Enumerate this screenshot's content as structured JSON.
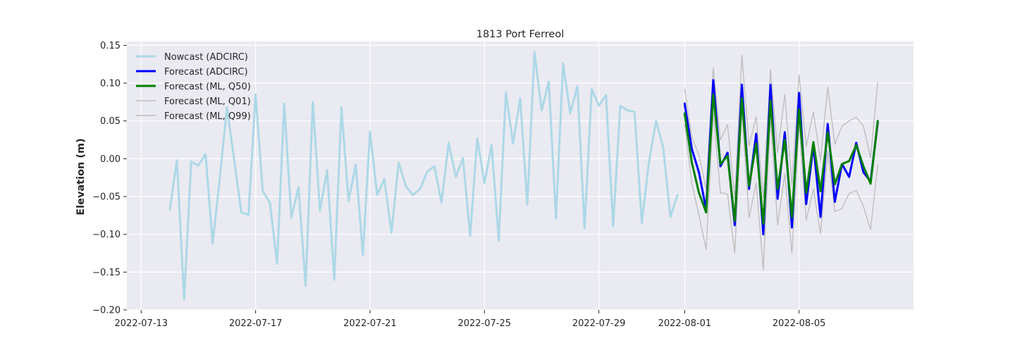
{
  "chart_data": {
    "type": "line",
    "title": "1813 Port Ferreol",
    "xlabel": "",
    "ylabel": "Elevation (m)",
    "ylim": [
      -0.2,
      0.155
    ],
    "xlim": [
      "2022-07-12 12:00",
      "2022-08-09 00:00"
    ],
    "grid": true,
    "legend_position": "top-left",
    "x_ticks": [
      "2022-07-13",
      "2022-07-17",
      "2022-07-21",
      "2022-07-25",
      "2022-07-29",
      "2022-08-01",
      "2022-08-05"
    ],
    "y_ticks": [
      "0.15",
      "0.10",
      "0.05",
      "0.00",
      "−0.05",
      "−0.10",
      "−0.15",
      "−0.20"
    ],
    "y_tick_values": [
      0.15,
      0.1,
      0.05,
      0.0,
      -0.05,
      -0.1,
      -0.15,
      -0.2
    ],
    "series": [
      {
        "name": "Nowcast (ADCIRC)",
        "color": "#add8e6",
        "width": 3,
        "x": [
          "2022-07-14 00:00",
          "2022-07-14 06:00",
          "2022-07-14 12:00",
          "2022-07-14 18:00",
          "2022-07-15 00:00",
          "2022-07-15 06:00",
          "2022-07-15 12:00",
          "2022-07-15 18:00",
          "2022-07-16 00:00",
          "2022-07-16 06:00",
          "2022-07-16 12:00",
          "2022-07-16 18:00",
          "2022-07-17 00:00",
          "2022-07-17 06:00",
          "2022-07-17 12:00",
          "2022-07-17 18:00",
          "2022-07-18 00:00",
          "2022-07-18 06:00",
          "2022-07-18 12:00",
          "2022-07-18 18:00",
          "2022-07-19 00:00",
          "2022-07-19 06:00",
          "2022-07-19 12:00",
          "2022-07-19 18:00",
          "2022-07-20 00:00",
          "2022-07-20 06:00",
          "2022-07-20 12:00",
          "2022-07-20 18:00",
          "2022-07-21 00:00",
          "2022-07-21 06:00",
          "2022-07-21 12:00",
          "2022-07-21 18:00",
          "2022-07-22 00:00",
          "2022-07-22 06:00",
          "2022-07-22 12:00",
          "2022-07-22 18:00",
          "2022-07-23 00:00",
          "2022-07-23 06:00",
          "2022-07-23 12:00",
          "2022-07-23 18:00",
          "2022-07-24 00:00",
          "2022-07-24 06:00",
          "2022-07-24 12:00",
          "2022-07-24 18:00",
          "2022-07-25 00:00",
          "2022-07-25 06:00",
          "2022-07-25 12:00",
          "2022-07-25 18:00",
          "2022-07-26 00:00",
          "2022-07-26 06:00",
          "2022-07-26 12:00",
          "2022-07-26 18:00",
          "2022-07-27 00:00",
          "2022-07-27 06:00",
          "2022-07-27 12:00",
          "2022-07-27 18:00",
          "2022-07-28 00:00",
          "2022-07-28 06:00",
          "2022-07-28 12:00",
          "2022-07-28 18:00",
          "2022-07-29 00:00",
          "2022-07-29 06:00",
          "2022-07-29 12:00",
          "2022-07-29 18:00",
          "2022-07-30 00:00",
          "2022-07-30 06:00",
          "2022-07-30 12:00",
          "2022-07-30 18:00",
          "2022-07-31 00:00",
          "2022-07-31 06:00",
          "2022-07-31 12:00",
          "2022-07-31 18:00"
        ],
        "values": [
          -0.067,
          -0.002,
          -0.186,
          -0.004,
          -0.009,
          0.006,
          -0.112,
          -0.025,
          0.068,
          -0.001,
          -0.071,
          -0.074,
          0.085,
          -0.043,
          -0.058,
          -0.139,
          0.073,
          -0.078,
          -0.038,
          -0.168,
          0.075,
          -0.069,
          -0.015,
          -0.16,
          0.068,
          -0.056,
          -0.008,
          -0.127,
          0.036,
          -0.048,
          -0.027,
          -0.098,
          -0.005,
          -0.036,
          -0.048,
          -0.04,
          -0.017,
          -0.01,
          -0.058,
          0.021,
          -0.024,
          0.001,
          -0.102,
          0.027,
          -0.032,
          0.018,
          -0.108,
          0.088,
          0.02,
          0.08,
          -0.061,
          0.141,
          0.064,
          0.102,
          -0.079,
          0.126,
          0.06,
          0.096,
          -0.092,
          0.092,
          0.07,
          0.084,
          -0.089,
          0.07,
          0.064,
          0.062,
          -0.085,
          -0.005,
          0.05,
          0.015,
          -0.077,
          -0.048
        ]
      },
      {
        "name": "Forecast (ADCIRC)",
        "color": "#0000ff",
        "width": 3,
        "x": [
          "2022-08-01 00:00",
          "2022-08-01 06:00",
          "2022-08-01 12:00",
          "2022-08-01 18:00",
          "2022-08-02 00:00",
          "2022-08-02 06:00",
          "2022-08-02 12:00",
          "2022-08-02 18:00",
          "2022-08-03 00:00",
          "2022-08-03 06:00",
          "2022-08-03 12:00",
          "2022-08-03 18:00",
          "2022-08-04 00:00",
          "2022-08-04 06:00",
          "2022-08-04 12:00",
          "2022-08-04 18:00",
          "2022-08-05 00:00",
          "2022-08-05 06:00",
          "2022-08-05 12:00",
          "2022-08-05 18:00",
          "2022-08-06 00:00",
          "2022-08-06 06:00",
          "2022-08-06 12:00",
          "2022-08-06 18:00",
          "2022-08-07 00:00",
          "2022-08-07 06:00",
          "2022-08-07 12:00",
          "2022-08-07 18:00"
        ],
        "values": [
          0.073,
          0.013,
          -0.018,
          -0.067,
          0.104,
          -0.01,
          0.008,
          -0.088,
          0.098,
          -0.04,
          0.033,
          -0.1,
          0.098,
          -0.053,
          0.035,
          -0.091,
          0.087,
          -0.06,
          0.018,
          -0.077,
          0.046,
          -0.057,
          -0.007,
          -0.024,
          0.021,
          -0.018,
          -0.03,
          0.048
        ]
      },
      {
        "name": "Forecast (ML, Q50)",
        "color": "#008000",
        "width": 3,
        "x": [
          "2022-08-01 00:00",
          "2022-08-01 06:00",
          "2022-08-01 12:00",
          "2022-08-01 18:00",
          "2022-08-02 00:00",
          "2022-08-02 06:00",
          "2022-08-02 12:00",
          "2022-08-02 18:00",
          "2022-08-03 00:00",
          "2022-08-03 06:00",
          "2022-08-03 12:00",
          "2022-08-03 18:00",
          "2022-08-04 00:00",
          "2022-08-04 06:00",
          "2022-08-04 12:00",
          "2022-08-04 18:00",
          "2022-08-05 00:00",
          "2022-08-05 06:00",
          "2022-08-05 12:00",
          "2022-08-05 18:00",
          "2022-08-06 00:00",
          "2022-08-06 06:00",
          "2022-08-06 12:00",
          "2022-08-06 18:00",
          "2022-08-07 00:00",
          "2022-08-07 06:00",
          "2022-08-07 12:00",
          "2022-08-07 18:00"
        ],
        "values": [
          0.06,
          -0.005,
          -0.045,
          -0.071,
          0.085,
          -0.007,
          0.004,
          -0.082,
          0.08,
          -0.036,
          0.02,
          -0.086,
          0.077,
          -0.04,
          0.025,
          -0.077,
          0.065,
          -0.045,
          0.022,
          -0.043,
          0.035,
          -0.034,
          -0.007,
          -0.003,
          0.018,
          -0.01,
          -0.033,
          0.05
        ]
      },
      {
        "name": "Forecast (ML, Q01)",
        "color": "#bcbcbc",
        "width": 1.3,
        "x": [
          "2022-08-01 00:00",
          "2022-08-01 06:00",
          "2022-08-01 12:00",
          "2022-08-01 18:00",
          "2022-08-02 00:00",
          "2022-08-02 06:00",
          "2022-08-02 12:00",
          "2022-08-02 18:00",
          "2022-08-03 00:00",
          "2022-08-03 06:00",
          "2022-08-03 12:00",
          "2022-08-03 18:00",
          "2022-08-04 00:00",
          "2022-08-04 06:00",
          "2022-08-04 12:00",
          "2022-08-04 18:00",
          "2022-08-05 00:00",
          "2022-08-05 06:00",
          "2022-08-05 12:00",
          "2022-08-05 18:00",
          "2022-08-06 00:00",
          "2022-08-06 06:00",
          "2022-08-06 12:00",
          "2022-08-06 18:00",
          "2022-08-07 00:00",
          "2022-08-07 06:00",
          "2022-08-07 12:00",
          "2022-08-07 18:00"
        ],
        "values": [
          0.045,
          -0.032,
          -0.075,
          -0.12,
          0.06,
          -0.045,
          -0.047,
          -0.125,
          0.065,
          -0.078,
          -0.032,
          -0.147,
          0.055,
          -0.088,
          -0.02,
          -0.125,
          0.045,
          -0.081,
          -0.04,
          -0.099,
          0.01,
          -0.07,
          -0.066,
          -0.046,
          -0.042,
          -0.063,
          -0.094,
          -0.008
        ]
      },
      {
        "name": "Forecast (ML, Q99)",
        "color": "#bcbcbc",
        "width": 1.3,
        "x": [
          "2022-08-01 00:00",
          "2022-08-01 06:00",
          "2022-08-01 12:00",
          "2022-08-01 18:00",
          "2022-08-02 00:00",
          "2022-08-02 06:00",
          "2022-08-02 12:00",
          "2022-08-02 18:00",
          "2022-08-03 00:00",
          "2022-08-03 06:00",
          "2022-08-03 12:00",
          "2022-08-03 18:00",
          "2022-08-04 00:00",
          "2022-08-04 06:00",
          "2022-08-04 12:00",
          "2022-08-04 18:00",
          "2022-08-05 00:00",
          "2022-08-05 06:00",
          "2022-08-05 12:00",
          "2022-08-05 18:00",
          "2022-08-06 00:00",
          "2022-08-06 06:00",
          "2022-08-06 12:00",
          "2022-08-06 18:00",
          "2022-08-07 00:00",
          "2022-08-07 06:00",
          "2022-08-07 12:00",
          "2022-08-07 18:00"
        ],
        "values": [
          0.092,
          0.028,
          0.005,
          -0.04,
          0.12,
          0.025,
          0.045,
          -0.052,
          0.137,
          0.017,
          0.056,
          -0.052,
          0.118,
          0.008,
          0.085,
          -0.035,
          0.111,
          0.016,
          0.062,
          -0.002,
          0.095,
          0.019,
          0.043,
          0.05,
          0.055,
          0.043,
          0.001,
          0.101
        ]
      }
    ]
  }
}
